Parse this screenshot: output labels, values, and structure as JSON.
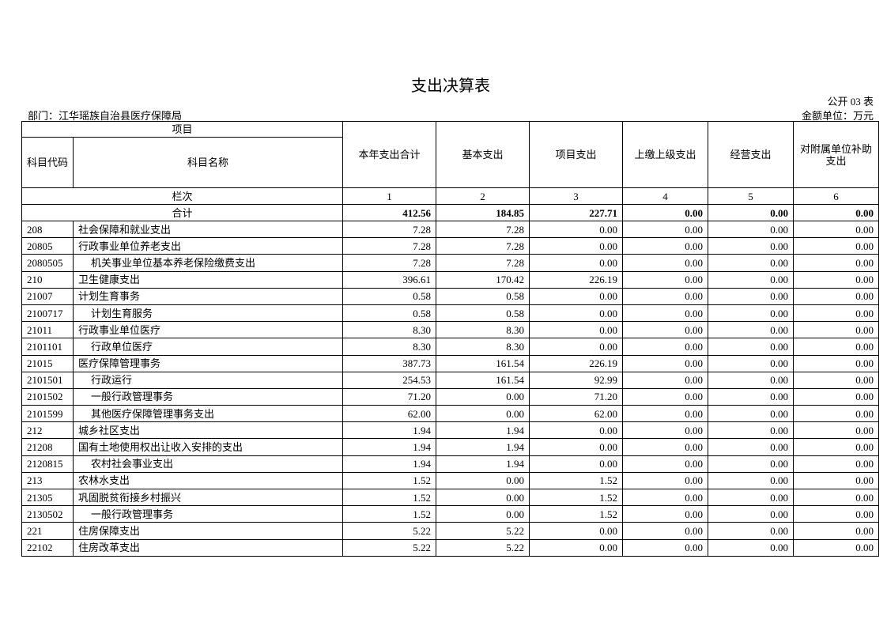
{
  "header": {
    "title": "支出决算表",
    "form_no": "公开 03 表",
    "department": "部门：江华瑶族自治县医疗保障局",
    "unit": "金额单位：万元"
  },
  "table": {
    "item_header": "项目",
    "code_header": "科目代码",
    "name_header": "科目名称",
    "columns": [
      "本年支出合计",
      "基本支出",
      "项目支出",
      "上缴上级支出",
      "经营支出",
      "对附属单位补助支出"
    ],
    "index_label": "栏次",
    "column_numbers": [
      1,
      2,
      3,
      4,
      5,
      6
    ],
    "total_label": "合计",
    "total": [
      "412.56",
      "184.85",
      "227.71",
      "0.00",
      "0.00",
      "0.00"
    ],
    "rows": [
      [
        "208",
        "社会保障和就业支出",
        "7.28",
        "7.28",
        "0.00",
        "0.00",
        "0.00",
        "0.00"
      ],
      [
        "20805",
        "行政事业单位养老支出",
        "7.28",
        "7.28",
        "0.00",
        "0.00",
        "0.00",
        "0.00"
      ],
      [
        "2080505",
        "机关事业单位基本养老保险缴费支出",
        "7.28",
        "7.28",
        "0.00",
        "0.00",
        "0.00",
        "0.00"
      ],
      [
        "210",
        "卫生健康支出",
        "396.61",
        "170.42",
        "226.19",
        "0.00",
        "0.00",
        "0.00"
      ],
      [
        "21007",
        "计划生育事务",
        "0.58",
        "0.58",
        "0.00",
        "0.00",
        "0.00",
        "0.00"
      ],
      [
        "2100717",
        "计划生育服务",
        "0.58",
        "0.58",
        "0.00",
        "0.00",
        "0.00",
        "0.00"
      ],
      [
        "21011",
        "行政事业单位医疗",
        "8.30",
        "8.30",
        "0.00",
        "0.00",
        "0.00",
        "0.00"
      ],
      [
        "2101101",
        "行政单位医疗",
        "8.30",
        "8.30",
        "0.00",
        "0.00",
        "0.00",
        "0.00"
      ],
      [
        "21015",
        "医疗保障管理事务",
        "387.73",
        "161.54",
        "226.19",
        "0.00",
        "0.00",
        "0.00"
      ],
      [
        "2101501",
        "行政运行",
        "254.53",
        "161.54",
        "92.99",
        "0.00",
        "0.00",
        "0.00"
      ],
      [
        "2101502",
        "一般行政管理事务",
        "71.20",
        "0.00",
        "71.20",
        "0.00",
        "0.00",
        "0.00"
      ],
      [
        "2101599",
        "其他医疗保障管理事务支出",
        "62.00",
        "0.00",
        "62.00",
        "0.00",
        "0.00",
        "0.00"
      ],
      [
        "212",
        "城乡社区支出",
        "1.94",
        "1.94",
        "0.00",
        "0.00",
        "0.00",
        "0.00"
      ],
      [
        "21208",
        "国有土地使用权出让收入安排的支出",
        "1.94",
        "1.94",
        "0.00",
        "0.00",
        "0.00",
        "0.00"
      ],
      [
        "2120815",
        "农村社会事业支出",
        "1.94",
        "1.94",
        "0.00",
        "0.00",
        "0.00",
        "0.00"
      ],
      [
        "213",
        "农林水支出",
        "1.52",
        "0.00",
        "1.52",
        "0.00",
        "0.00",
        "0.00"
      ],
      [
        "21305",
        "巩固脱贫衔接乡村振兴",
        "1.52",
        "0.00",
        "1.52",
        "0.00",
        "0.00",
        "0.00"
      ],
      [
        "2130502",
        "一般行政管理事务",
        "1.52",
        "0.00",
        "1.52",
        "0.00",
        "0.00",
        "0.00"
      ],
      [
        "221",
        "住房保障支出",
        "5.22",
        "5.22",
        "0.00",
        "0.00",
        "0.00",
        "0.00"
      ],
      [
        "22102",
        "住房改革支出",
        "5.22",
        "5.22",
        "0.00",
        "0.00",
        "0.00",
        "0.00"
      ]
    ]
  }
}
